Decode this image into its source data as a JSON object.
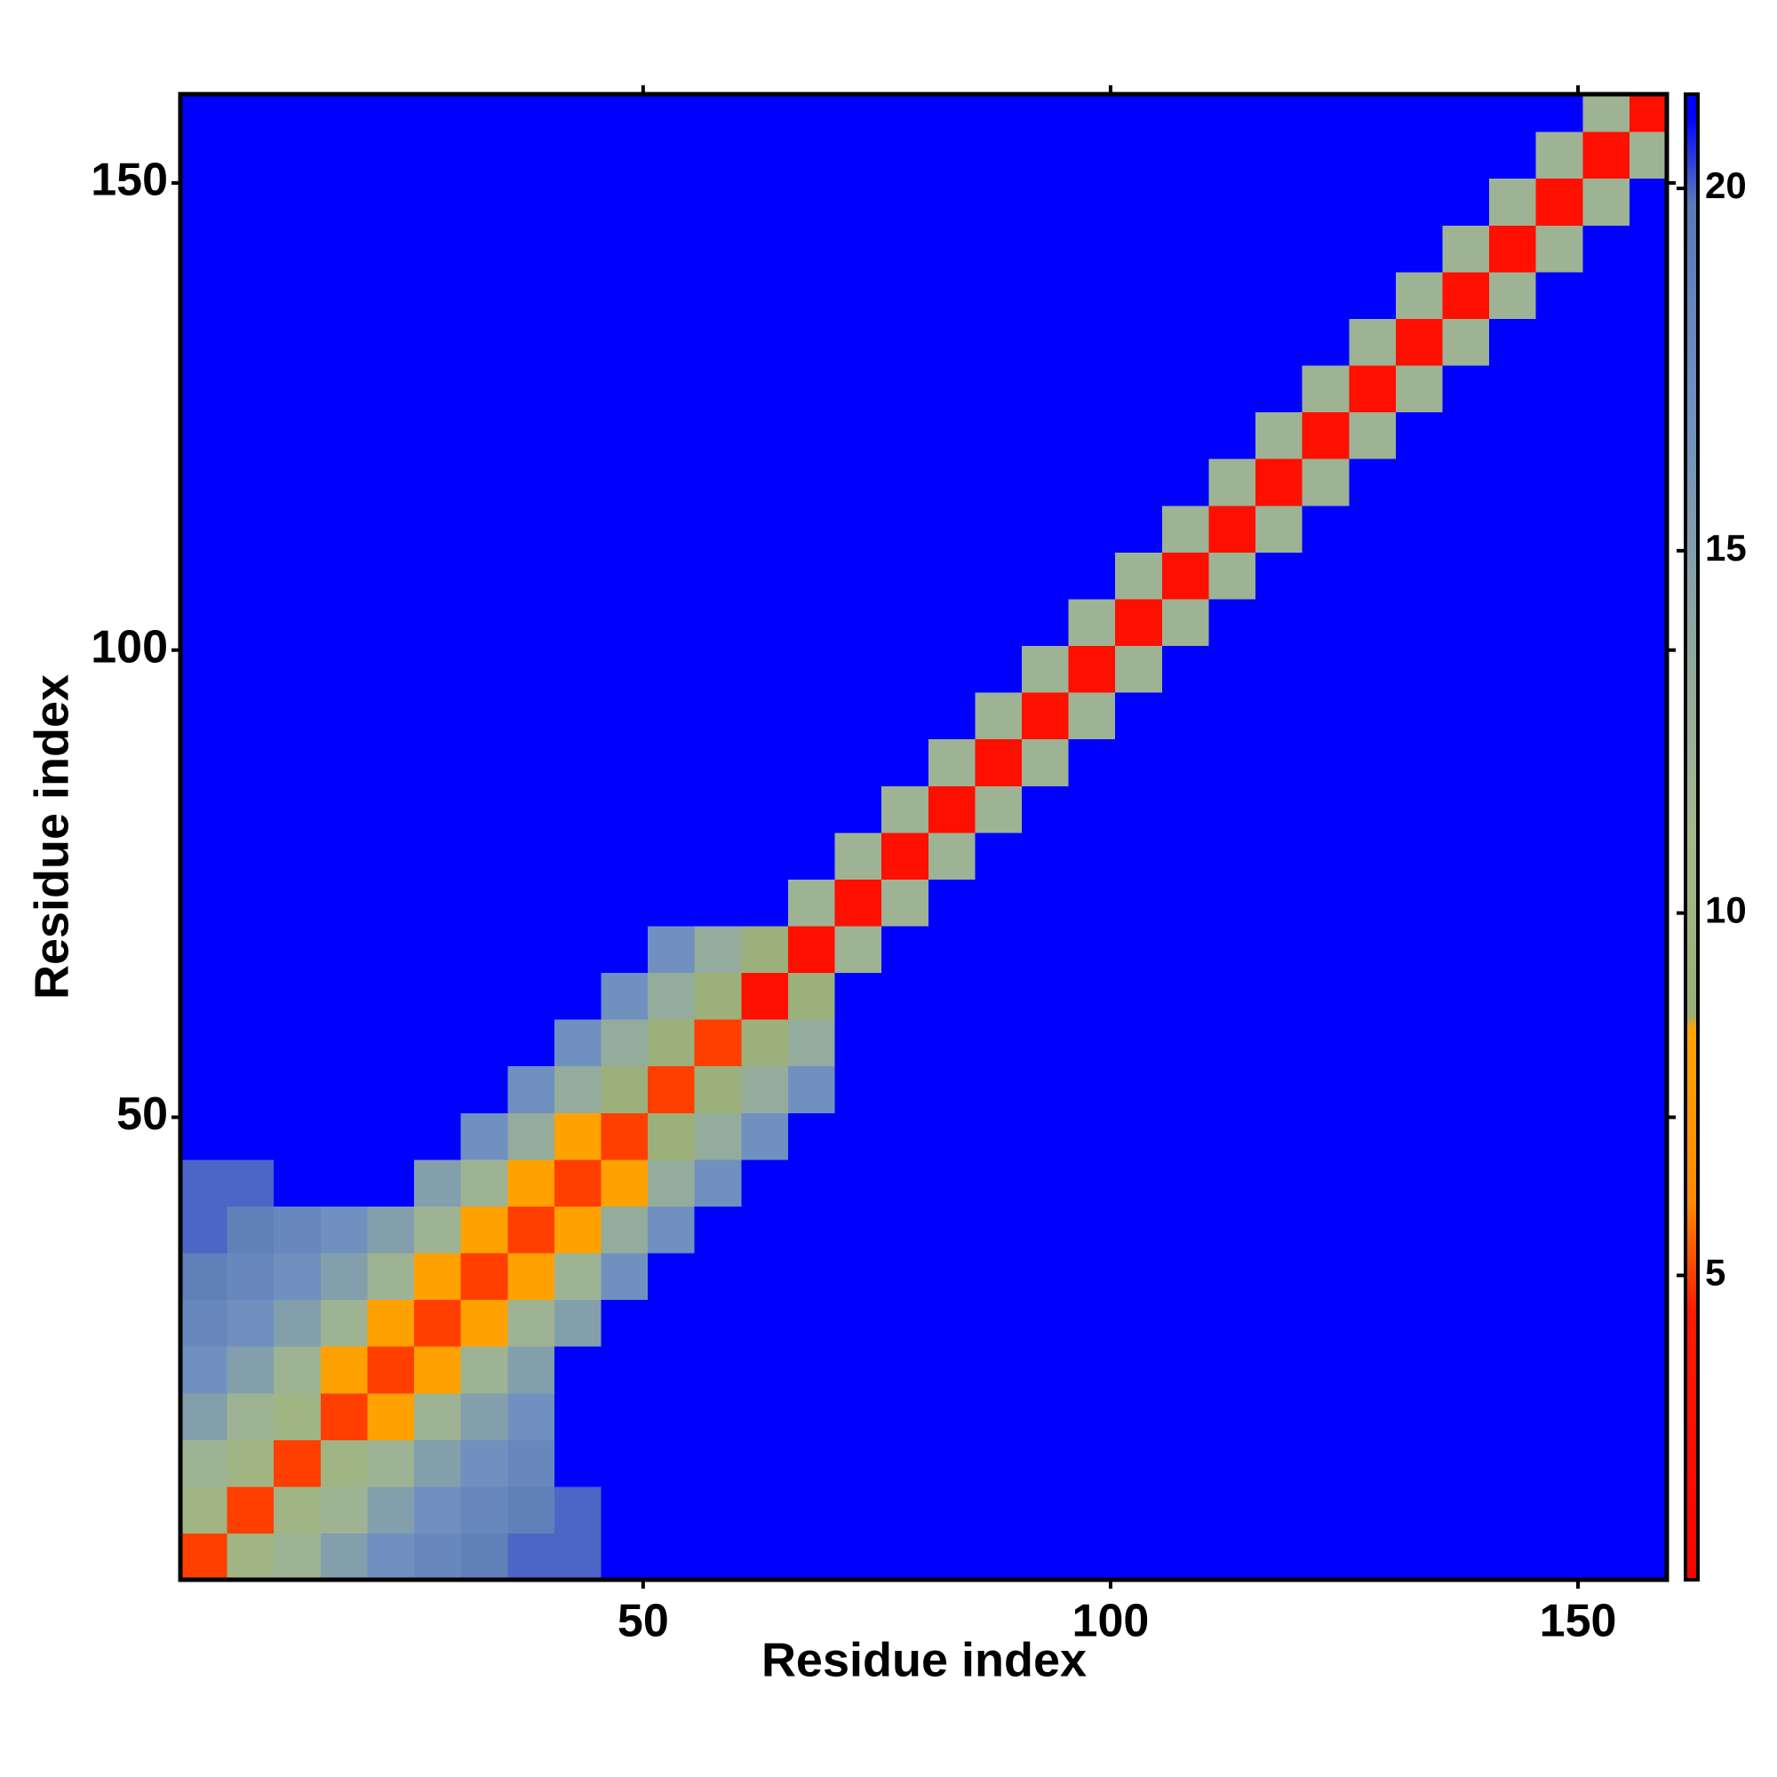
{
  "chart_data": {
    "type": "heatmap",
    "xlabel": "Residue index",
    "ylabel": "Residue index",
    "xlim": [
      0.5,
      159.5
    ],
    "ylim": [
      0.5,
      159.5
    ],
    "xticks": [
      50,
      100,
      150
    ],
    "yticks": [
      50,
      100,
      150
    ],
    "xbins": [
      0.5,
      5.5,
      10.5,
      15.5,
      20.5,
      25.5,
      30.5,
      35.5,
      40.5,
      45.5,
      50.5,
      55.5,
      60.5,
      65.5,
      70.5,
      75.5,
      80.5,
      85.5,
      90.5,
      95.5,
      100.5,
      105.5,
      110.5,
      115.5,
      120.5,
      125.5,
      130.5,
      135.5,
      140.5,
      145.5,
      150.5,
      155.5,
      159.5
    ],
    "ybins": [
      0.5,
      5.5,
      10.5,
      15.5,
      20.5,
      25.5,
      30.5,
      35.5,
      40.5,
      45.5,
      50.5,
      55.5,
      60.5,
      65.5,
      70.5,
      75.5,
      80.5,
      85.5,
      90.5,
      95.5,
      100.5,
      105.5,
      110.5,
      115.5,
      120.5,
      125.5,
      130.5,
      135.5,
      140.5,
      145.5,
      150.5,
      155.5,
      159.5
    ],
    "zlim": [
      0.8,
      21.3
    ],
    "zticks": [
      5,
      10,
      15,
      20
    ],
    "colorscale": [
      [
        0.8,
        "#ff0000"
      ],
      [
        4.5,
        "#ff1a00"
      ],
      [
        6,
        "#ff8a00"
      ],
      [
        8.4,
        "#ffa500"
      ],
      [
        8.6,
        "#9aae78"
      ],
      [
        11,
        "#a5b98c"
      ],
      [
        14,
        "#8ca6a2"
      ],
      [
        17,
        "#7090c0"
      ],
      [
        19.8,
        "#5a7ab8"
      ],
      [
        21,
        "#0000ff"
      ]
    ],
    "z": [
      [
        5,
        10,
        12,
        15,
        17,
        18,
        19,
        20,
        20,
        21,
        21,
        21,
        21,
        21,
        21,
        21,
        21,
        21,
        21,
        21,
        21,
        21,
        21,
        21,
        21,
        21,
        21,
        21,
        21,
        21,
        21,
        21
      ],
      [
        10,
        5,
        10,
        12,
        15,
        17,
        18,
        19,
        20,
        21,
        21,
        21,
        21,
        21,
        21,
        21,
        21,
        21,
        21,
        21,
        21,
        21,
        21,
        21,
        21,
        21,
        21,
        21,
        21,
        21,
        21,
        21
      ],
      [
        12,
        10,
        5,
        10,
        12,
        15,
        17,
        18,
        21,
        21,
        21,
        21,
        21,
        21,
        21,
        21,
        21,
        21,
        21,
        21,
        21,
        21,
        21,
        21,
        21,
        21,
        21,
        21,
        21,
        21,
        21,
        21
      ],
      [
        15,
        12,
        10,
        5,
        8,
        12,
        15,
        17,
        21,
        21,
        21,
        21,
        21,
        21,
        21,
        21,
        21,
        21,
        21,
        21,
        21,
        21,
        21,
        21,
        21,
        21,
        21,
        21,
        21,
        21,
        21,
        21
      ],
      [
        17,
        15,
        12,
        8,
        5,
        8,
        12,
        15,
        21,
        21,
        21,
        21,
        21,
        21,
        21,
        21,
        21,
        21,
        21,
        21,
        21,
        21,
        21,
        21,
        21,
        21,
        21,
        21,
        21,
        21,
        21,
        21
      ],
      [
        18,
        17,
        15,
        12,
        8,
        5,
        8,
        12,
        15,
        21,
        21,
        21,
        21,
        21,
        21,
        21,
        21,
        21,
        21,
        21,
        21,
        21,
        21,
        21,
        21,
        21,
        21,
        21,
        21,
        21,
        21,
        21
      ],
      [
        19,
        18,
        17,
        15,
        12,
        8,
        5,
        8,
        12,
        17,
        21,
        21,
        21,
        21,
        21,
        21,
        21,
        21,
        21,
        21,
        21,
        21,
        21,
        21,
        21,
        21,
        21,
        21,
        21,
        21,
        21,
        21
      ],
      [
        20,
        19,
        18,
        17,
        15,
        12,
        8,
        5,
        8,
        13,
        17,
        21,
        21,
        21,
        21,
        21,
        21,
        21,
        21,
        21,
        21,
        21,
        21,
        21,
        21,
        21,
        21,
        21,
        21,
        21,
        21,
        21
      ],
      [
        20,
        20,
        21,
        21,
        21,
        15,
        12,
        8,
        5,
        8,
        13,
        17,
        21,
        21,
        21,
        21,
        21,
        21,
        21,
        21,
        21,
        21,
        21,
        21,
        21,
        21,
        21,
        21,
        21,
        21,
        21,
        21
      ],
      [
        21,
        21,
        21,
        21,
        21,
        21,
        17,
        13,
        8,
        5,
        9,
        13,
        17,
        21,
        21,
        21,
        21,
        21,
        21,
        21,
        21,
        21,
        21,
        21,
        21,
        21,
        21,
        21,
        21,
        21,
        21,
        21
      ],
      [
        21,
        21,
        21,
        21,
        21,
        21,
        21,
        17,
        13,
        9,
        5,
        9,
        13,
        17,
        21,
        21,
        21,
        21,
        21,
        21,
        21,
        21,
        21,
        21,
        21,
        21,
        21,
        21,
        21,
        21,
        21,
        21
      ],
      [
        21,
        21,
        21,
        21,
        21,
        21,
        21,
        21,
        17,
        13,
        9,
        5,
        9,
        13,
        21,
        21,
        21,
        21,
        21,
        21,
        21,
        21,
        21,
        21,
        21,
        21,
        21,
        21,
        21,
        21,
        21,
        21
      ],
      [
        21,
        21,
        21,
        21,
        21,
        21,
        21,
        21,
        21,
        17,
        13,
        9,
        3,
        9,
        21,
        21,
        21,
        21,
        21,
        21,
        21,
        21,
        21,
        21,
        21,
        21,
        21,
        21,
        21,
        21,
        21,
        21
      ],
      [
        21,
        21,
        21,
        21,
        21,
        21,
        21,
        21,
        21,
        21,
        17,
        13,
        9,
        3,
        12,
        21,
        21,
        21,
        21,
        21,
        21,
        21,
        21,
        21,
        21,
        21,
        21,
        21,
        21,
        21,
        21,
        21
      ],
      [
        21,
        21,
        21,
        21,
        21,
        21,
        21,
        21,
        21,
        21,
        21,
        21,
        21,
        12,
        3,
        12,
        21,
        21,
        21,
        21,
        21,
        21,
        21,
        21,
        21,
        21,
        21,
        21,
        21,
        21,
        21,
        21
      ],
      [
        21,
        21,
        21,
        21,
        21,
        21,
        21,
        21,
        21,
        21,
        21,
        21,
        21,
        21,
        12,
        3,
        12,
        21,
        21,
        21,
        21,
        21,
        21,
        21,
        21,
        21,
        21,
        21,
        21,
        21,
        21,
        21
      ],
      [
        21,
        21,
        21,
        21,
        21,
        21,
        21,
        21,
        21,
        21,
        21,
        21,
        21,
        21,
        21,
        12,
        3,
        12,
        21,
        21,
        21,
        21,
        21,
        21,
        21,
        21,
        21,
        21,
        21,
        21,
        21,
        21
      ],
      [
        21,
        21,
        21,
        21,
        21,
        21,
        21,
        21,
        21,
        21,
        21,
        21,
        21,
        21,
        21,
        21,
        12,
        3,
        12,
        21,
        21,
        21,
        21,
        21,
        21,
        21,
        21,
        21,
        21,
        21,
        21,
        21
      ],
      [
        21,
        21,
        21,
        21,
        21,
        21,
        21,
        21,
        21,
        21,
        21,
        21,
        21,
        21,
        21,
        21,
        21,
        12,
        3,
        12,
        21,
        21,
        21,
        21,
        21,
        21,
        21,
        21,
        21,
        21,
        21,
        21
      ],
      [
        21,
        21,
        21,
        21,
        21,
        21,
        21,
        21,
        21,
        21,
        21,
        21,
        21,
        21,
        21,
        21,
        21,
        21,
        12,
        3,
        12,
        21,
        21,
        21,
        21,
        21,
        21,
        21,
        21,
        21,
        21,
        21
      ],
      [
        21,
        21,
        21,
        21,
        21,
        21,
        21,
        21,
        21,
        21,
        21,
        21,
        21,
        21,
        21,
        21,
        21,
        21,
        21,
        12,
        3,
        12,
        21,
        21,
        21,
        21,
        21,
        21,
        21,
        21,
        21,
        21
      ],
      [
        21,
        21,
        21,
        21,
        21,
        21,
        21,
        21,
        21,
        21,
        21,
        21,
        21,
        21,
        21,
        21,
        21,
        21,
        21,
        21,
        12,
        3,
        12,
        21,
        21,
        21,
        21,
        21,
        21,
        21,
        21,
        21
      ],
      [
        21,
        21,
        21,
        21,
        21,
        21,
        21,
        21,
        21,
        21,
        21,
        21,
        21,
        21,
        21,
        21,
        21,
        21,
        21,
        21,
        21,
        12,
        3,
        12,
        21,
        21,
        21,
        21,
        21,
        21,
        21,
        21
      ],
      [
        21,
        21,
        21,
        21,
        21,
        21,
        21,
        21,
        21,
        21,
        21,
        21,
        21,
        21,
        21,
        21,
        21,
        21,
        21,
        21,
        21,
        21,
        12,
        3,
        12,
        21,
        21,
        21,
        21,
        21,
        21,
        21
      ],
      [
        21,
        21,
        21,
        21,
        21,
        21,
        21,
        21,
        21,
        21,
        21,
        21,
        21,
        21,
        21,
        21,
        21,
        21,
        21,
        21,
        21,
        21,
        21,
        12,
        3,
        12,
        21,
        21,
        21,
        21,
        21,
        21
      ],
      [
        21,
        21,
        21,
        21,
        21,
        21,
        21,
        21,
        21,
        21,
        21,
        21,
        21,
        21,
        21,
        21,
        21,
        21,
        21,
        21,
        21,
        21,
        21,
        21,
        12,
        3,
        12,
        21,
        21,
        21,
        21,
        21
      ],
      [
        21,
        21,
        21,
        21,
        21,
        21,
        21,
        21,
        21,
        21,
        21,
        21,
        21,
        21,
        21,
        21,
        21,
        21,
        21,
        21,
        21,
        21,
        21,
        21,
        21,
        12,
        3,
        12,
        21,
        21,
        21,
        21
      ],
      [
        21,
        21,
        21,
        21,
        21,
        21,
        21,
        21,
        21,
        21,
        21,
        21,
        21,
        21,
        21,
        21,
        21,
        21,
        21,
        21,
        21,
        21,
        21,
        21,
        21,
        21,
        12,
        3,
        12,
        21,
        21,
        21
      ],
      [
        21,
        21,
        21,
        21,
        21,
        21,
        21,
        21,
        21,
        21,
        21,
        21,
        21,
        21,
        21,
        21,
        21,
        21,
        21,
        21,
        21,
        21,
        21,
        21,
        21,
        21,
        21,
        12,
        3,
        12,
        21,
        21
      ],
      [
        21,
        21,
        21,
        21,
        21,
        21,
        21,
        21,
        21,
        21,
        21,
        21,
        21,
        21,
        21,
        21,
        21,
        21,
        21,
        21,
        21,
        21,
        21,
        21,
        21,
        21,
        21,
        21,
        12,
        3,
        12,
        21
      ],
      [
        21,
        21,
        21,
        21,
        21,
        21,
        21,
        21,
        21,
        21,
        21,
        21,
        21,
        21,
        21,
        21,
        21,
        21,
        21,
        21,
        21,
        21,
        21,
        21,
        21,
        21,
        21,
        21,
        21,
        12,
        3,
        12
      ],
      [
        21,
        21,
        21,
        21,
        21,
        21,
        21,
        21,
        21,
        21,
        21,
        21,
        21,
        21,
        21,
        21,
        21,
        21,
        21,
        21,
        21,
        21,
        21,
        21,
        21,
        21,
        21,
        21,
        21,
        21,
        12,
        3
      ]
    ]
  }
}
